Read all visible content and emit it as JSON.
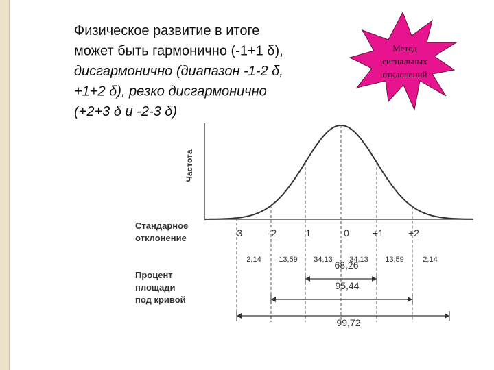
{
  "slide": {
    "text_lines": [
      "Физическое развитие в итоге",
      "может быть гармонично (-1+1 δ),",
      "дисгармонично (диапазон -1-2 δ,",
      "+1+2 δ), резко дисгармонично",
      "(+2+3 δ и -2-3 δ)"
    ],
    "badge_lines": [
      "Метод",
      "сигнальных",
      "отклонений"
    ]
  },
  "figure": {
    "y_axis_label": "Частота",
    "sd_label_lines": [
      "Стандарное",
      "отклонение"
    ],
    "sd_ticks": [
      "-3",
      "-2",
      "-1",
      "0",
      "+1",
      "+2"
    ],
    "area_label_lines": [
      "Процент",
      "площади",
      "под кривой"
    ],
    "area_percents": [
      "2,14",
      "13,59",
      "34,13",
      "34,13",
      "13,59",
      "2,14"
    ],
    "ranges": [
      "68,26",
      "95,44",
      "99,72"
    ]
  }
}
